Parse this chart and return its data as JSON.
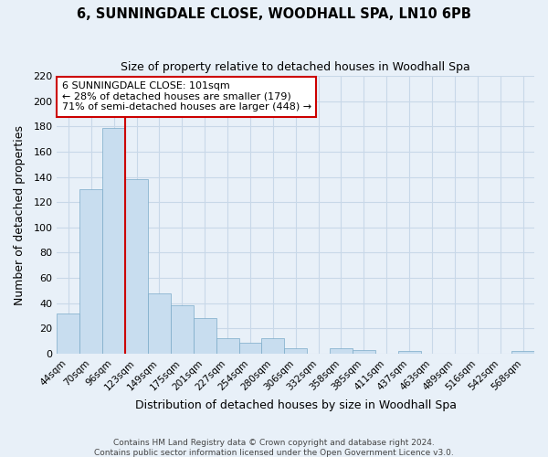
{
  "title": "6, SUNNINGDALE CLOSE, WOODHALL SPA, LN10 6PB",
  "subtitle": "Size of property relative to detached houses in Woodhall Spa",
  "xlabel": "Distribution of detached houses by size in Woodhall Spa",
  "ylabel": "Number of detached properties",
  "bar_color": "#c8ddef",
  "bar_edge_color": "#7baac8",
  "grid_color": "#c8d8e8",
  "bins": [
    "44sqm",
    "70sqm",
    "96sqm",
    "123sqm",
    "149sqm",
    "175sqm",
    "201sqm",
    "227sqm",
    "254sqm",
    "280sqm",
    "306sqm",
    "332sqm",
    "358sqm",
    "385sqm",
    "411sqm",
    "437sqm",
    "463sqm",
    "489sqm",
    "516sqm",
    "542sqm",
    "568sqm"
  ],
  "values": [
    32,
    130,
    179,
    138,
    48,
    38,
    28,
    12,
    9,
    12,
    4,
    0,
    4,
    3,
    0,
    2,
    0,
    0,
    0,
    0,
    2
  ],
  "ylim": [
    0,
    220
  ],
  "yticks": [
    0,
    20,
    40,
    60,
    80,
    100,
    120,
    140,
    160,
    180,
    200,
    220
  ],
  "marker_line_color": "#cc0000",
  "annotation_title": "6 SUNNINGDALE CLOSE: 101sqm",
  "annotation_line1": "← 28% of detached houses are smaller (179)",
  "annotation_line2": "71% of semi-detached houses are larger (448) →",
  "annotation_box_edge": "#cc0000",
  "footer1": "Contains HM Land Registry data © Crown copyright and database right 2024.",
  "footer2": "Contains public sector information licensed under the Open Government Licence v3.0.",
  "background_color": "#e8f0f8",
  "plot_bg_color": "#e8f0f8"
}
